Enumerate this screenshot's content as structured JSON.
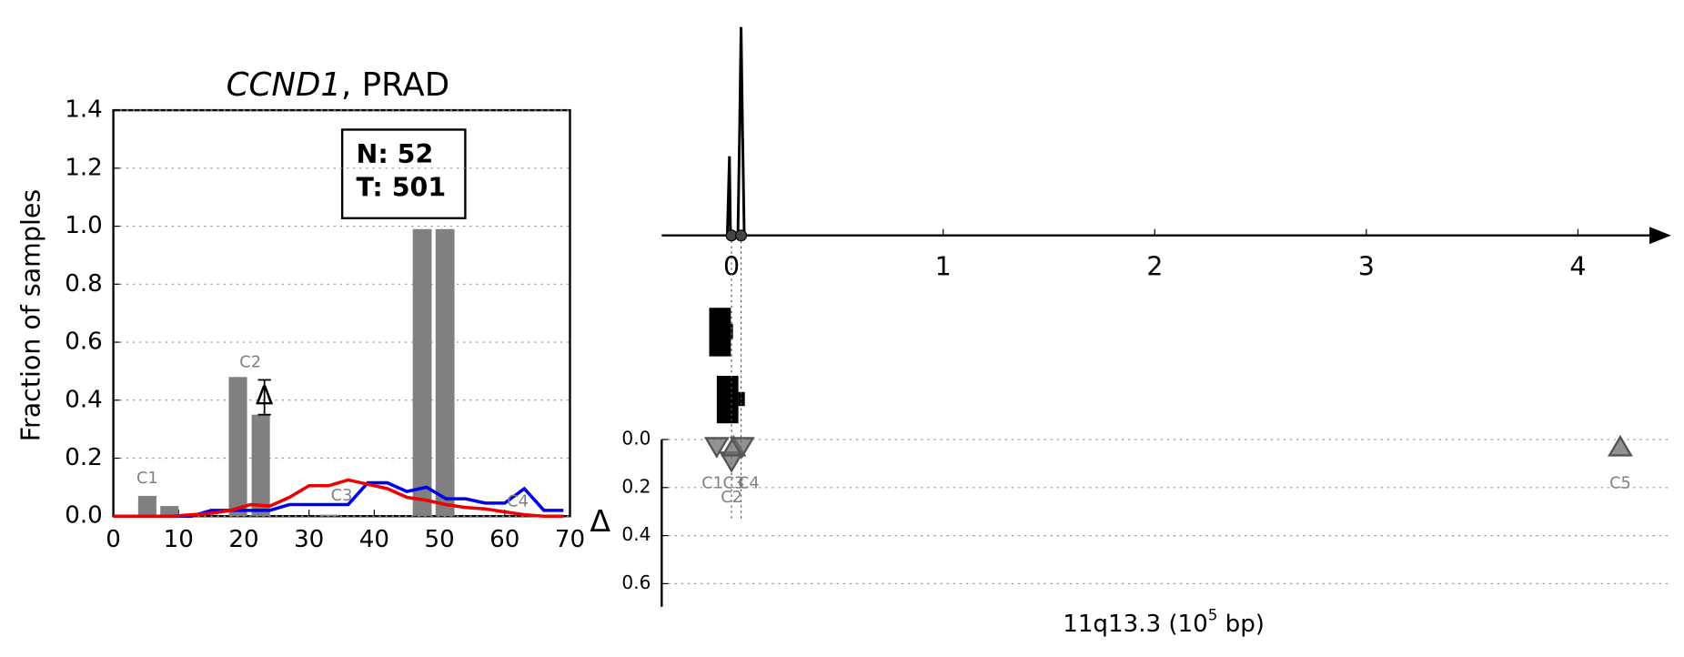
{
  "chart_data": [
    {
      "type": "bar",
      "title_italic": "CCND1",
      "title_rest": ", PRAD",
      "ylabel": "Fraction of samples",
      "box_lines": [
        "N: 52",
        "T: 501"
      ],
      "bar_left": [
        3.8,
        7.2,
        17.7,
        21.2,
        31.6,
        45.9,
        49.4
      ],
      "bar_right": [
        6.6,
        10.0,
        20.5,
        24.0,
        34.6,
        48.8,
        52.3
      ],
      "bar_values": [
        0.07,
        0.035,
        0.48,
        0.35,
        0.005,
        0.99,
        0.99
      ],
      "bar_color": "#808080",
      "x": [
        0,
        3,
        6,
        9,
        12,
        15,
        18,
        21,
        24,
        27,
        30,
        33,
        36,
        39,
        42,
        45,
        48,
        51,
        54,
        57,
        60,
        63,
        66,
        69
      ],
      "series": [
        {
          "color": "#0000ee",
          "values": [
            0,
            0,
            0,
            0,
            0,
            0.02,
            0.02,
            0.02,
            0.02,
            0.04,
            0.04,
            0.04,
            0.04,
            0.115,
            0.115,
            0.085,
            0.1,
            0.06,
            0.06,
            0.045,
            0.045,
            0.095,
            0.02,
            0.02
          ]
        },
        {
          "color": "#ee0000",
          "values": [
            0,
            0,
            0,
            0,
            0.005,
            0.01,
            0.02,
            0.04,
            0.035,
            0.065,
            0.105,
            0.105,
            0.125,
            0.11,
            0.095,
            0.065,
            0.055,
            0.04,
            0.03,
            0.025,
            0.015,
            0.005,
            0,
            0
          ]
        }
      ],
      "annotations": [
        {
          "text": "C1",
          "x": 5.2,
          "y": 0.13
        },
        {
          "text": "C2",
          "x": 21,
          "y": 0.53
        },
        {
          "text": "C3",
          "x": 35,
          "y": 0.07
        },
        {
          "text": "C4",
          "x": 62,
          "y": 0.05
        }
      ],
      "delta": {
        "text": "Δ",
        "x": 22.5,
        "low": 0.35,
        "high": 0.47
      },
      "xlim": [
        0,
        70
      ],
      "ylim": [
        0,
        1.4
      ],
      "xticks": [
        0,
        10,
        20,
        30,
        40,
        50,
        60,
        70
      ],
      "yticks": [
        {
          "value": 0,
          "label": "0.0"
        },
        {
          "value": 0.2,
          "label": "0.2"
        },
        {
          "value": 0.4,
          "label": "0.4"
        },
        {
          "value": 0.6,
          "label": "0.6"
        },
        {
          "value": 0.8,
          "label": "0.8"
        },
        {
          "value": 1.0,
          "label": "1.0"
        },
        {
          "value": 1.2,
          "label": "1.2"
        },
        {
          "value": 1.4,
          "label": "1.4"
        }
      ],
      "grid": true
    },
    {
      "type": "line",
      "x": [
        -0.02,
        -0.01,
        -0.005,
        0.0,
        0.03,
        0.038,
        0.045,
        0.052,
        0.06
      ],
      "values": [
        0,
        0.38,
        0,
        0,
        0,
        0.5,
        1.0,
        0.5,
        0
      ],
      "points": [
        0.0,
        0.045
      ],
      "color": "#000000",
      "xlim": [
        -0.33,
        4.44
      ],
      "xticks": [
        0,
        1,
        2,
        3,
        4
      ]
    },
    {
      "type": "scatter",
      "ylabel": "Δ",
      "xlabel_main": "11q13.3 (10",
      "xlabel_sup": "5",
      "xlabel_end": " bp)",
      "markers": [
        {
          "label": "C1",
          "x": -0.07,
          "y": 0.03,
          "dir": "down"
        },
        {
          "label": "C2",
          "x": 0.0,
          "y": 0.09,
          "dir": "down"
        },
        {
          "label": "C3",
          "x": 0.01,
          "y": 0.03,
          "dir": "up"
        },
        {
          "label": "C4",
          "x": 0.05,
          "y": 0.03,
          "dir": "down"
        },
        {
          "label": "C5",
          "x": 4.2,
          "y": 0.03,
          "dir": "up"
        }
      ],
      "color": "#6e6e6e",
      "xlim": [
        -0.33,
        4.44
      ],
      "ylim": [
        0,
        0.7
      ],
      "yticks": [
        {
          "value": 0,
          "label": "0.0"
        },
        {
          "value": 0.2,
          "label": "0.2"
        },
        {
          "value": 0.4,
          "label": "0.4"
        },
        {
          "value": 0.6,
          "label": "0.6"
        }
      ],
      "grid": true
    }
  ]
}
